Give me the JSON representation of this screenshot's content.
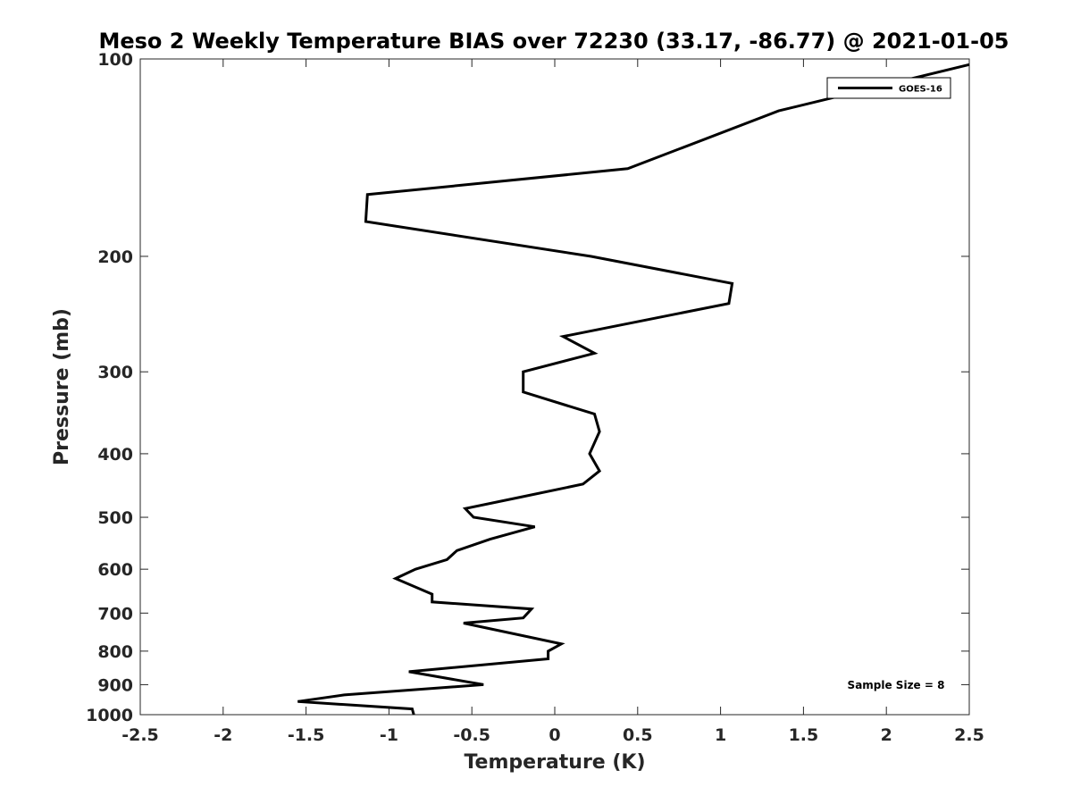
{
  "chart_data": {
    "type": "line",
    "title": "Meso 2 Weekly Temperature BIAS over 72230 (33.17, -86.77) @ 2021-01-05",
    "xlabel": "Temperature (K)",
    "ylabel": "Pressure (mb)",
    "xlim": [
      -2.5,
      2.5
    ],
    "ylim": [
      100,
      1000
    ],
    "y_scale": "log",
    "y_reversed": true,
    "x_ticks": [
      -2.5,
      -2,
      -1.5,
      -1,
      -0.5,
      0,
      0.5,
      1,
      1.5,
      2,
      2.5
    ],
    "x_tick_labels": [
      "-2.5",
      "-2",
      "-1.5",
      "-1",
      "-0.5",
      "0",
      "0.5",
      "1",
      "1.5",
      "2",
      "2.5"
    ],
    "y_ticks": [
      100,
      200,
      300,
      400,
      500,
      600,
      700,
      800,
      900,
      1000
    ],
    "y_tick_labels": [
      "100",
      "200",
      "300",
      "400",
      "500",
      "600",
      "700",
      "800",
      "900",
      "1000"
    ],
    "grid": false,
    "legend_position": "top-right",
    "annotation": "Sample Size = 8",
    "series": [
      {
        "name": "GOES-16",
        "color": "#000000",
        "points": [
          {
            "x": 2.5,
            "p": 102
          },
          {
            "x": 1.35,
            "p": 120
          },
          {
            "x": 0.44,
            "p": 147
          },
          {
            "x": -1.13,
            "p": 161
          },
          {
            "x": -1.14,
            "p": 177
          },
          {
            "x": 0.22,
            "p": 200
          },
          {
            "x": 1.07,
            "p": 220
          },
          {
            "x": 1.05,
            "p": 236
          },
          {
            "x": 0.05,
            "p": 265
          },
          {
            "x": 0.24,
            "p": 281
          },
          {
            "x": -0.19,
            "p": 300
          },
          {
            "x": -0.19,
            "p": 322
          },
          {
            "x": 0.24,
            "p": 348
          },
          {
            "x": 0.27,
            "p": 370
          },
          {
            "x": 0.21,
            "p": 400
          },
          {
            "x": 0.27,
            "p": 425
          },
          {
            "x": 0.17,
            "p": 445
          },
          {
            "x": -0.21,
            "p": 466
          },
          {
            "x": -0.54,
            "p": 485
          },
          {
            "x": -0.49,
            "p": 500
          },
          {
            "x": -0.12,
            "p": 517
          },
          {
            "x": -0.39,
            "p": 540
          },
          {
            "x": -0.59,
            "p": 562
          },
          {
            "x": -0.65,
            "p": 580
          },
          {
            "x": -0.84,
            "p": 600
          },
          {
            "x": -0.96,
            "p": 620
          },
          {
            "x": -0.74,
            "p": 655
          },
          {
            "x": -0.74,
            "p": 673
          },
          {
            "x": -0.14,
            "p": 690
          },
          {
            "x": -0.19,
            "p": 712
          },
          {
            "x": -0.55,
            "p": 725
          },
          {
            "x": 0.04,
            "p": 780
          },
          {
            "x": -0.04,
            "p": 800
          },
          {
            "x": -0.04,
            "p": 822
          },
          {
            "x": -0.88,
            "p": 860
          },
          {
            "x": -0.43,
            "p": 900
          },
          {
            "x": -1.27,
            "p": 933
          },
          {
            "x": -1.55,
            "p": 955
          },
          {
            "x": -0.86,
            "p": 980
          },
          {
            "x": -0.85,
            "p": 1000
          }
        ]
      }
    ]
  }
}
